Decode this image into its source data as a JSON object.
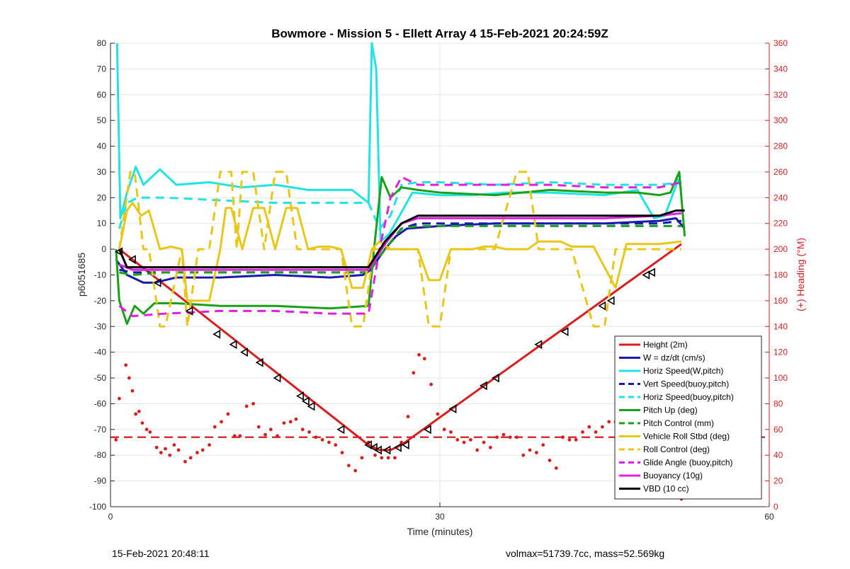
{
  "chart_data": {
    "type": "line",
    "title": "Bowmore - Mission 5 - Ellett Array 4 15-Feb-2021 20:24:59Z",
    "xlabel": "Time (minutes)",
    "ylabel": "p6051685",
    "y2label": "(+) Heading (°M)",
    "xlim": [
      0,
      60
    ],
    "ylim": [
      -100,
      80
    ],
    "y2lim": [
      0,
      360
    ],
    "xticks": [
      0,
      30,
      60
    ],
    "yticks": [
      80,
      70,
      60,
      50,
      40,
      30,
      20,
      10,
      0,
      -10,
      -20,
      -30,
      -40,
      -50,
      -60,
      -70,
      -80,
      -90,
      -100
    ],
    "y2ticks": [
      360,
      340,
      320,
      300,
      280,
      260,
      240,
      220,
      200,
      180,
      160,
      140,
      120,
      100,
      80,
      60,
      40,
      20,
      0
    ],
    "grid": true,
    "legend_position": "bottom-right",
    "series": [
      {
        "name": "Height (2m)",
        "color": "#d81e1e",
        "style": "solid",
        "x": [
          0.8,
          23.5,
          24.5,
          25.5,
          26.5,
          52
        ],
        "y": [
          0,
          -76,
          -78,
          -78,
          -76,
          2
        ]
      },
      {
        "name": "W = dz/dt (cm/s)",
        "color": "#1a1aaf",
        "style": "solid",
        "x": [
          0.5,
          1.5,
          3,
          4,
          6,
          10,
          15,
          20,
          23,
          23.7,
          25,
          26,
          27,
          30,
          35,
          40,
          45,
          50,
          51.5,
          52.3
        ],
        "y": [
          -4,
          -10,
          -13,
          -13,
          -11,
          -11,
          -10,
          -11,
          -10,
          -8,
          0,
          5,
          8,
          9,
          10,
          10,
          10,
          11,
          12,
          8
        ]
      },
      {
        "name": "Horiz Speed(W,pitch)",
        "color": "#22e3e3",
        "style": "solid",
        "x": [
          0.6,
          0.9,
          1.5,
          2.3,
          3,
          4.5,
          6,
          9,
          12,
          15,
          18,
          22,
          23.5,
          23.8,
          24.2,
          24.6,
          25.4,
          26.2,
          27.5,
          30,
          33,
          36,
          40,
          45,
          48,
          49.5,
          50.5,
          51.7,
          52
        ],
        "y": [
          80,
          12,
          22,
          32,
          25,
          31,
          25,
          26,
          24,
          25,
          23,
          23,
          18,
          80,
          70,
          3,
          6,
          12,
          22,
          21,
          21,
          22,
          22,
          21,
          23,
          12,
          13,
          27,
          23
        ]
      },
      {
        "name": "Vert Speed(buoy,pitch)",
        "color": "#1a1aaf",
        "style": "dashed",
        "x": [
          0.8,
          2,
          5,
          10,
          15,
          20,
          23.5,
          25,
          26.5,
          28,
          30,
          35,
          40,
          45,
          50,
          52
        ],
        "y": [
          -8,
          -9,
          -9,
          -9,
          -9,
          -9,
          -9,
          0,
          8,
          10,
          10,
          10,
          10,
          10,
          10,
          11
        ]
      },
      {
        "name": "Horiz Speed(buoy,pitch)",
        "color": "#22e3e3",
        "style": "dashed",
        "x": [
          0.8,
          1.5,
          2.5,
          5,
          10,
          15,
          20,
          23.5,
          24.5,
          25.5,
          26.5,
          28,
          30,
          35,
          40,
          45,
          50,
          52
        ],
        "y": [
          8,
          18,
          20,
          20,
          19,
          18,
          18,
          18,
          8,
          13,
          25,
          26,
          26,
          25,
          26,
          25,
          25,
          26
        ]
      },
      {
        "name": "Pitch Up (deg)",
        "color": "#1aa01a",
        "style": "solid",
        "x": [
          0.5,
          0.8,
          1.5,
          2.2,
          3,
          4,
          6,
          10,
          15,
          20,
          23.5,
          24,
          24.7,
          25.5,
          26.5,
          28,
          30,
          35,
          40,
          45,
          48,
          50,
          51,
          51.8,
          52.3
        ],
        "y": [
          0,
          -20,
          -29,
          -22,
          -25,
          -21,
          -21,
          -22,
          -22,
          -23,
          -22,
          0,
          28,
          20,
          24,
          23,
          22,
          21,
          23,
          22,
          22,
          21,
          22,
          30,
          5
        ]
      },
      {
        "name": "Pitch Control (mm)",
        "color": "#1aa01a",
        "style": "dashed",
        "x": [
          0.8,
          2,
          5,
          10,
          15,
          20,
          23.5,
          25,
          26.5,
          28,
          30,
          35,
          40,
          45,
          50,
          52
        ],
        "y": [
          -9,
          -10,
          -9,
          -9,
          -9,
          -9,
          -9,
          0,
          8,
          9,
          9,
          9,
          9,
          9,
          9,
          9
        ]
      },
      {
        "name": "Vehicle Roll Stbd (deg)",
        "color": "#e8c61a",
        "style": "solid",
        "x": [
          0.8,
          1.5,
          2,
          2.8,
          3.5,
          4.5,
          5.5,
          6.5,
          7,
          8,
          9,
          10,
          10.5,
          11,
          12,
          13,
          14,
          15,
          16,
          17,
          18,
          19,
          20,
          21,
          22,
          23,
          23.8,
          24.5,
          25.5,
          26.5,
          28,
          29,
          30,
          31,
          32,
          33,
          34,
          35,
          36,
          37,
          38,
          39,
          40,
          41,
          42,
          44,
          46,
          47,
          48,
          50,
          52
        ],
        "y": [
          0,
          15,
          18,
          13,
          15,
          0,
          1,
          0,
          -20,
          -20,
          -20,
          0,
          16,
          16,
          0,
          16,
          16,
          0,
          16,
          16,
          0,
          1,
          1,
          0,
          -15,
          -15,
          0,
          3,
          0,
          0,
          0,
          -12,
          -12,
          0,
          0,
          0,
          1,
          1,
          0,
          0,
          0,
          3,
          3,
          3,
          1,
          1,
          -15,
          2,
          2,
          2,
          3
        ]
      },
      {
        "name": "Roll Control (deg)",
        "color": "#e8c61a",
        "style": "dashed",
        "x": [
          0.8,
          1.8,
          2.2,
          3,
          3.5,
          4.5,
          5,
          6.5,
          7,
          8,
          9,
          10,
          11,
          11.5,
          12,
          13,
          14,
          15,
          16,
          17,
          18,
          20,
          21,
          22,
          23,
          24,
          25,
          26.5,
          28,
          29,
          30,
          31,
          33,
          35,
          37,
          38,
          39,
          40,
          42,
          44,
          45,
          46,
          47,
          48,
          50,
          52
        ],
        "y": [
          0,
          30,
          30,
          0,
          0,
          -30,
          -30,
          0,
          -30,
          0,
          0,
          30,
          30,
          0,
          30,
          30,
          0,
          30,
          30,
          0,
          0,
          0,
          0,
          -30,
          -30,
          0,
          0,
          0,
          0,
          -30,
          -30,
          0,
          0,
          0,
          30,
          30,
          0,
          0,
          0,
          -30,
          -30,
          0,
          0,
          0,
          0,
          0
        ]
      },
      {
        "name": "Glide Angle (buoy,pitch)",
        "color": "#e020e0",
        "style": "dashed",
        "x": [
          0.8,
          2,
          5,
          10,
          15,
          20,
          23.5,
          24.5,
          25.5,
          26.5,
          28,
          30,
          35,
          40,
          45,
          50,
          52
        ],
        "y": [
          -22,
          -26,
          -25,
          -24,
          -24,
          -25,
          -25,
          0,
          20,
          28,
          25,
          25,
          25,
          25,
          24,
          24,
          26
        ]
      },
      {
        "name": "Buoyancy (10g)",
        "color": "#e020e0",
        "style": "solid",
        "x": [
          0.8,
          2,
          5,
          10,
          15,
          20,
          23.5,
          25,
          26.5,
          28,
          30,
          35,
          40,
          45,
          50,
          52
        ],
        "y": [
          -6,
          -8,
          -8,
          -8,
          -8,
          -8,
          -8,
          2,
          10,
          12,
          12,
          12,
          12,
          12,
          13,
          14
        ]
      },
      {
        "name": "VBD (10 cc)",
        "color": "#000000",
        "style": "solid",
        "x": [
          0.8,
          1.5,
          5,
          10,
          15,
          20,
          23.5,
          25,
          26.5,
          28,
          30,
          35,
          40,
          45,
          50,
          51.5,
          52.3
        ],
        "y": [
          0,
          -7,
          -7,
          -7,
          -7,
          -7,
          -7,
          3,
          10,
          13,
          13,
          13,
          13,
          13,
          13,
          15,
          15
        ]
      }
    ],
    "heading_target": {
      "style": "dashed",
      "color": "#d81e1e",
      "y2": 54
    },
    "heading_scatter": {
      "color": "#d81e1e",
      "x": [
        0.5,
        0.8,
        1.4,
        1.7,
        2,
        2.3,
        2.6,
        2.9,
        3.3,
        3.6,
        4.2,
        4.6,
        5,
        5.4,
        5.8,
        6.2,
        6.8,
        7.3,
        7.9,
        8.4,
        9,
        9.5,
        10.1,
        10.7,
        11.3,
        11.8,
        12.4,
        13,
        13.5,
        14.1,
        14.6,
        15.2,
        15.8,
        16.4,
        16.9,
        17.5,
        18.1,
        18.7,
        19.3,
        19.9,
        20.5,
        21.1,
        21.7,
        22.3,
        22.9,
        23.5,
        24.1,
        24.7,
        25.3,
        25.9,
        26.5,
        27.1,
        27.6,
        28.1,
        28.6,
        29.2,
        29.8,
        30.4,
        31,
        31.6,
        32.2,
        32.8,
        33.4,
        34,
        34.6,
        35.2,
        35.8,
        36.4,
        37,
        37.6,
        38.2,
        38.8,
        39.4,
        40,
        40.6,
        41.2,
        41.8,
        42.4,
        43,
        43.6,
        44.2,
        44.8,
        45.4,
        46,
        46.6,
        47.2,
        47.8,
        48.4,
        49,
        49.6,
        50.2,
        50.8,
        51.4,
        52
      ],
      "y2": [
        52,
        84,
        110,
        100,
        90,
        72,
        74,
        65,
        60,
        58,
        46,
        42,
        45,
        40,
        48,
        44,
        35,
        38,
        42,
        44,
        48,
        62,
        66,
        72,
        55,
        55,
        78,
        80,
        62,
        56,
        60,
        55,
        65,
        66,
        68,
        60,
        58,
        54,
        52,
        50,
        48,
        42,
        32,
        28,
        38,
        50,
        40,
        38,
        38,
        38,
        50,
        70,
        104,
        118,
        115,
        95,
        72,
        60,
        58,
        52,
        50,
        52,
        44,
        50,
        46,
        54,
        56,
        54,
        54,
        40,
        44,
        42,
        48,
        36,
        30,
        54,
        52,
        52,
        58,
        62,
        58,
        62,
        66,
        66,
        72,
        76,
        76,
        66,
        52,
        34,
        20,
        30,
        40,
        6
      ]
    },
    "height_markers": {
      "x": [
        0.8,
        2,
        4.3,
        7.2,
        9.7,
        11.2,
        12.2,
        13.6,
        15.2,
        17.3,
        17.8,
        18.3,
        21,
        23.5,
        24,
        24.4,
        25.2,
        26.2,
        26.9,
        28.9,
        31.2,
        34,
        35.1,
        39,
        41.4,
        44.8,
        45.6,
        48.8,
        49.3
      ],
      "y": [
        -1,
        -4,
        -13,
        -24,
        -33,
        -37,
        -40,
        -44,
        -50,
        -57,
        -59,
        -61,
        -70,
        -76,
        -77,
        -78,
        -78,
        -77,
        -76,
        -70,
        -62,
        -53,
        -50,
        -37,
        -32,
        -22,
        -20,
        -10,
        -9
      ]
    }
  },
  "footer": {
    "timestamp": "15-Feb-2021 20:48:11",
    "stats": "volmax=51739.7cc, mass=52.569kg"
  }
}
